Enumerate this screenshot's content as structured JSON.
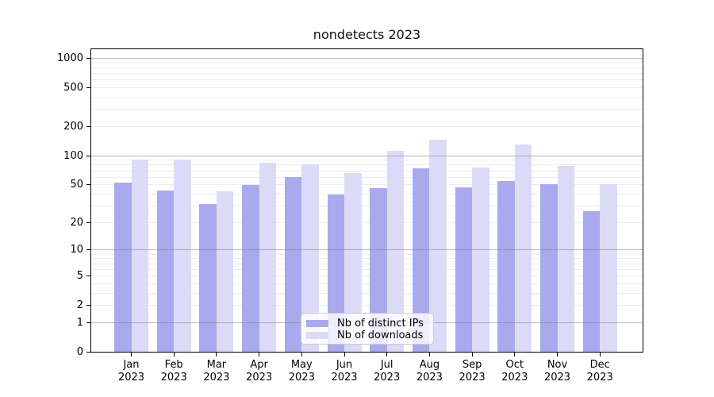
{
  "chart_data": {
    "type": "bar",
    "title": "nondetects 2023",
    "x_year": "2023",
    "categories": [
      "Jan",
      "Feb",
      "Mar",
      "Apr",
      "May",
      "Jun",
      "Jul",
      "Aug",
      "Sep",
      "Oct",
      "Nov",
      "Dec"
    ],
    "series": [
      {
        "name": "Nb of distinct IPs",
        "color": "#a9a9ee",
        "values": [
          52,
          43,
          31,
          49,
          60,
          39,
          46,
          73,
          47,
          54,
          50,
          26
        ]
      },
      {
        "name": "Nb of downloads",
        "color": "#dbdbf8",
        "values": [
          90,
          90,
          42,
          84,
          81,
          66,
          111,
          144,
          75,
          130,
          78,
          50
        ]
      }
    ],
    "y_scale": "symlog",
    "y_ticks": [
      1000,
      500,
      200,
      100,
      50,
      20,
      10,
      5,
      2,
      1,
      0
    ],
    "y_top_value": 1270,
    "grid": "minor log lines + gray decade lines (1,10,100,1000)",
    "legend_position": "lower center",
    "xlabel": "",
    "ylabel": ""
  }
}
